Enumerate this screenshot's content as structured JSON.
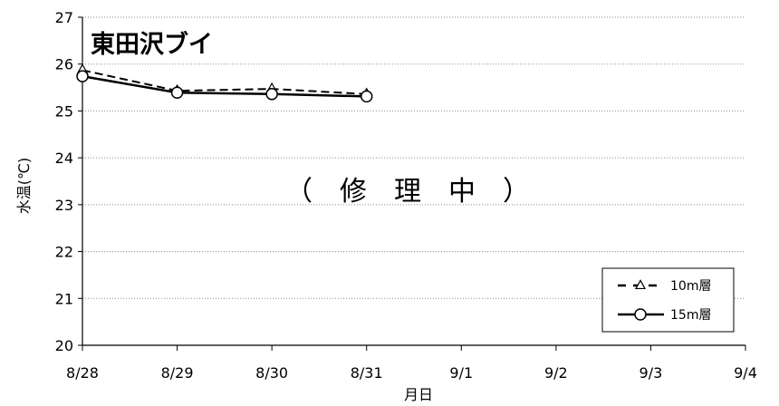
{
  "chart_data": {
    "type": "line",
    "title": "東田沢ブイ",
    "annotation": "（　修　理　中　）",
    "xlabel": "月日",
    "ylabel": "水温(℃)",
    "categories": [
      "8/28",
      "8/29",
      "8/30",
      "8/31",
      "9/1",
      "9/2",
      "9/3",
      "9/4"
    ],
    "ylim": [
      20,
      27
    ],
    "yticks": [
      20,
      21,
      22,
      23,
      24,
      25,
      26,
      27
    ],
    "grid": "horizontal dotted",
    "legend_position": "bottom-right",
    "series": [
      {
        "name": "10m層",
        "style": "dashed",
        "marker": "triangle",
        "color": "#000000",
        "x": [
          "8/28",
          "8/29",
          "8/30",
          "8/31"
        ],
        "values": [
          25.87,
          25.43,
          25.47,
          25.36
        ]
      },
      {
        "name": "15m層",
        "style": "solid",
        "marker": "circle",
        "color": "#000000",
        "x": [
          "8/28",
          "8/29",
          "8/30",
          "8/31"
        ],
        "values": [
          25.74,
          25.39,
          25.36,
          25.31
        ]
      }
    ]
  }
}
